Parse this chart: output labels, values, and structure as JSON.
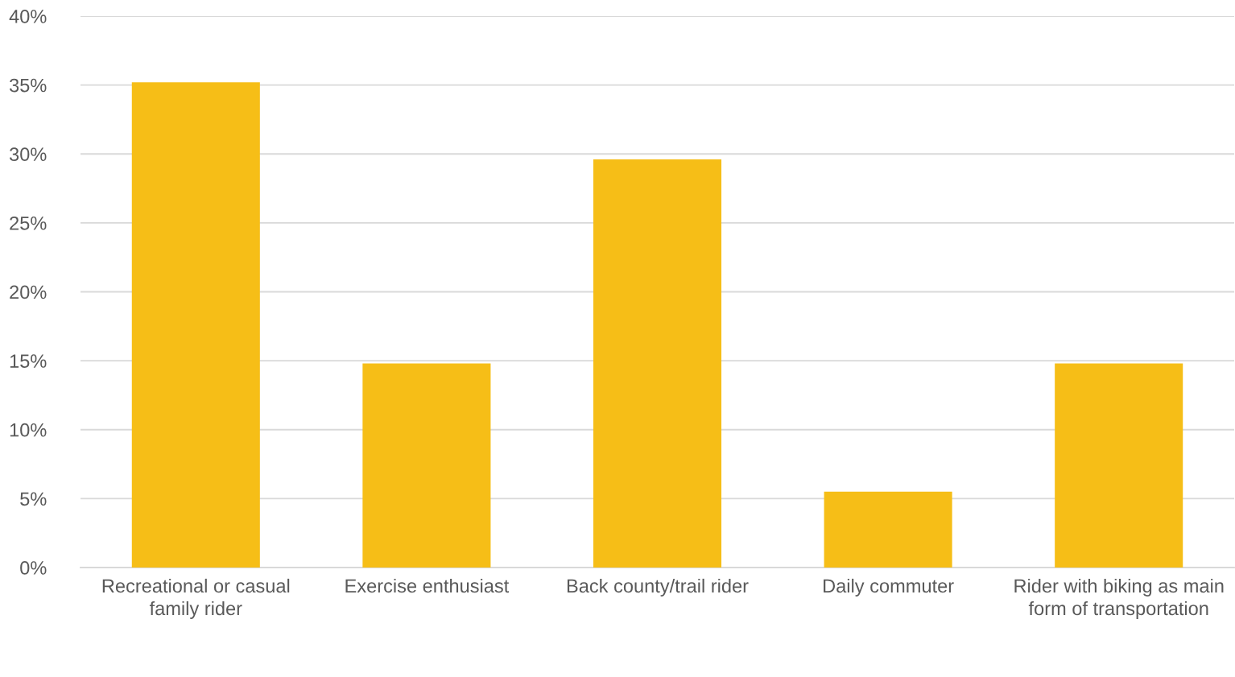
{
  "chart_data": {
    "type": "bar",
    "categories": [
      "Recreational or casual family rider",
      "Exercise enthusiast",
      "Back county/trail rider",
      "Daily commuter",
      "Rider with biking as main form of transportation"
    ],
    "values": [
      35.2,
      14.8,
      29.6,
      5.5,
      14.8
    ],
    "color": "#f6be17",
    "ylim": [
      0,
      40
    ],
    "yticks": [
      {
        "value": 0,
        "label": "0%"
      },
      {
        "value": 5,
        "label": "5%"
      },
      {
        "value": 10,
        "label": "10%"
      },
      {
        "value": 15,
        "label": "15%"
      },
      {
        "value": 20,
        "label": "20%"
      },
      {
        "value": 25,
        "label": "25%"
      },
      {
        "value": 30,
        "label": "30%"
      },
      {
        "value": 35,
        "label": "35%"
      },
      {
        "value": 40,
        "label": "40%"
      }
    ],
    "grid": "y",
    "legend": false
  }
}
